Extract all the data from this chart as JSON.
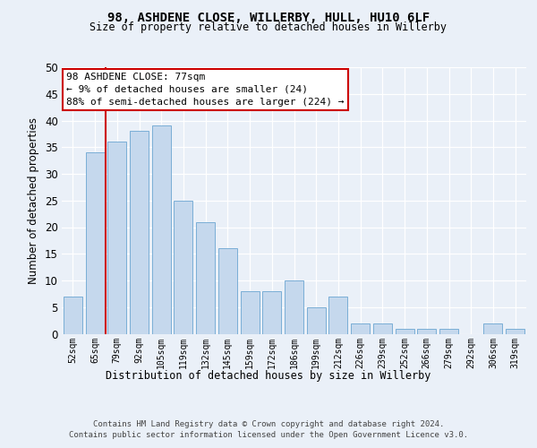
{
  "title1": "98, ASHDENE CLOSE, WILLERBY, HULL, HU10 6LF",
  "title2": "Size of property relative to detached houses in Willerby",
  "xlabel": "Distribution of detached houses by size in Willerby",
  "ylabel": "Number of detached properties",
  "categories": [
    "52sqm",
    "65sqm",
    "79sqm",
    "92sqm",
    "105sqm",
    "119sqm",
    "132sqm",
    "145sqm",
    "159sqm",
    "172sqm",
    "186sqm",
    "199sqm",
    "212sqm",
    "226sqm",
    "239sqm",
    "252sqm",
    "266sqm",
    "279sqm",
    "292sqm",
    "306sqm",
    "319sqm"
  ],
  "values": [
    7,
    34,
    36,
    38,
    39,
    25,
    21,
    16,
    8,
    8,
    10,
    5,
    7,
    2,
    2,
    1,
    1,
    1,
    0,
    2,
    1
  ],
  "bar_color": "#c5d8ed",
  "bar_edge_color": "#7aaed6",
  "vline_color": "#cc0000",
  "annotation_text": "98 ASHDENE CLOSE: 77sqm\n← 9% of detached houses are smaller (24)\n88% of semi-detached houses are larger (224) →",
  "annotation_box_color": "#ffffff",
  "annotation_box_edge_color": "#cc0000",
  "ylim": [
    0,
    50
  ],
  "yticks": [
    0,
    5,
    10,
    15,
    20,
    25,
    30,
    35,
    40,
    45,
    50
  ],
  "bg_color": "#eaf0f8",
  "plot_bg_color": "#eaf0f8",
  "footer_line1": "Contains HM Land Registry data © Crown copyright and database right 2024.",
  "footer_line2": "Contains public sector information licensed under the Open Government Licence v3.0."
}
